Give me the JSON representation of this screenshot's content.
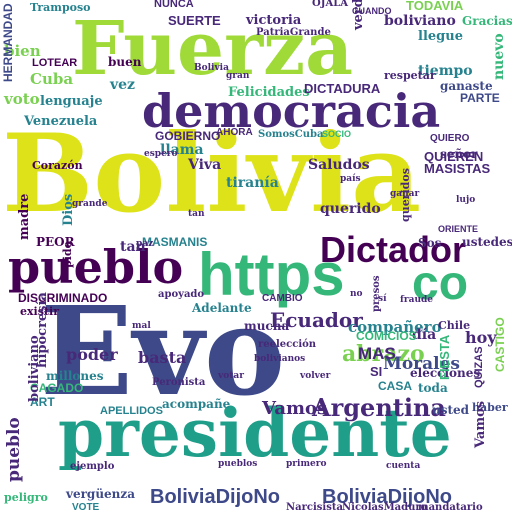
{
  "palette": {
    "yellow": "#dde318",
    "lime": "#7ad151",
    "green": "#35b779",
    "teal": "#1f9e89",
    "cyan": "#26828e",
    "blue": "#31688e",
    "indigo": "#3e4989",
    "purple": "#482878",
    "dark": "#440154"
  },
  "words": {
    "evo": "Evo",
    "bolivia": "Bolivia",
    "fuerza": "Fuerza",
    "presidente": "presidente",
    "democracia": "democracia",
    "pueblo": "pueblo",
    "https": "https",
    "co": "co",
    "dictador": "Dictador",
    "bolivia_dijo_no_1": "BoliviaDijoNo",
    "bolivia_dijo_no_2": "BoliviaDijoNo",
    "argentina": "Argentina",
    "abrazo": "abrazo",
    "morales": "Morales",
    "ecuador": "Ecuador",
    "companero": "compañero",
    "vamos": "Vamos",
    "poder": "poder",
    "basta": "basta",
    "hoy": "hoy",
    "cuba": "Cuba",
    "voto": "voto",
    "queridos": "queridos",
    "querido": "querido",
    "llama": "llama",
    "viva": "Viva",
    "saludos": "Saludos",
    "tirania": "tiranía",
    "masmanis": "MASMANIS",
    "felicidades": "Felicidades",
    "dictadura": "DICTADURA",
    "gobierno": "GOBIERNO",
    "suerte": "SUERTE",
    "victoria": "victoria",
    "boliviano": "boliviano",
    "todavia": "TODAVIA",
    "nuevo": "nuevo",
    "verdadero": "verdadero",
    "gracias": "Gracias",
    "llegue": "llegue",
    "tiempo": "tiempo",
    "ganaste": "ganaste",
    "parte": "PARTE",
    "lenguaje": "lenguaje",
    "venezuela": "Venezuela",
    "vez": "vez",
    "buen": "buen",
    "bien": "bien",
    "loter": "LOTEAR",
    "hermandad": "HERMANDAD",
    "quieren": "QUIEREN",
    "masistas": "MASISTAS",
    "senor": "señor",
    "madre": "madre",
    "peor": "PEOR",
    "tan": "tan",
    "ustedes": "ustedes",
    "sos": "Sos",
    "discriminado": "DISCRIMINADO",
    "existir": "existir",
    "boliviano2": "boliviano",
    "hipocresia": "hipocresía",
    "adelante": "Adelante",
    "mucha": "mucha",
    "dia": "día",
    "mas": "MAS",
    "elecciones": "elecciones",
    "casa": "CASA",
    "toda": "toda",
    "millones": "millones",
    "cagado": "CAGADO",
    "art": "ART",
    "apellidos": "APELLIDOS",
    "acompane": "acompañe",
    "verguenza": "vergüenza",
    "vote": "VOTE",
    "patriagrande": "PatriaGrande",
    "quizas": "QUIZAS",
    "chile": "Chile",
    "fiesta": "FIESTA",
    "castigo": "CASTIGO",
    "somoscuba": "SomosCuba",
    "peligro": "peligro",
    "vamos2": "Vamos",
    "usted": "usted",
    "haber": "haber",
    "corazon": "Corazón",
    "apoyado": "apoyado",
    "nunca": "NUNCA",
    "tramposo": "Tramposo",
    "ojalá": "OJALÁ",
    "cuando": "CUANDO",
    "ahora": "AHORA",
    "quiero": "QUIERO",
    "pido": "pido",
    "dios": "Dios",
    "respetar": "respetar",
    "oriente": "ORIENTE",
    "socio": "SOCIO",
    "grande": "grande",
    "pais": "país",
    "lujo": "lujo",
    "bolivianos": "bolivianos",
    "reeleccion": "reelección",
    "fraude": "fraude",
    "peronista": "Peronista",
    "cambio": "CAMBIO",
    "comicios": "COMICIOS",
    "presos": "presos",
    "primero": "primero",
    "pueblos": "pueblos",
    "cuenta": "cuenta",
    "nicolas": "NicolasMaduro",
    "narcisista": "Narcisista",
    "mandatario": "mandatario",
    "espero": "espero",
    "ejemplo": "ejemplo",
    "ganar": "ganar",
    "volver": "volver",
    "votar": "votar",
    "bolivia_small": "Bolivia",
    "tan2": "tan",
    "si": "SI",
    "si2": "sí",
    "mal": "mal",
    "no": "no",
    "paz": "paz",
    "gran": "gran"
  }
}
